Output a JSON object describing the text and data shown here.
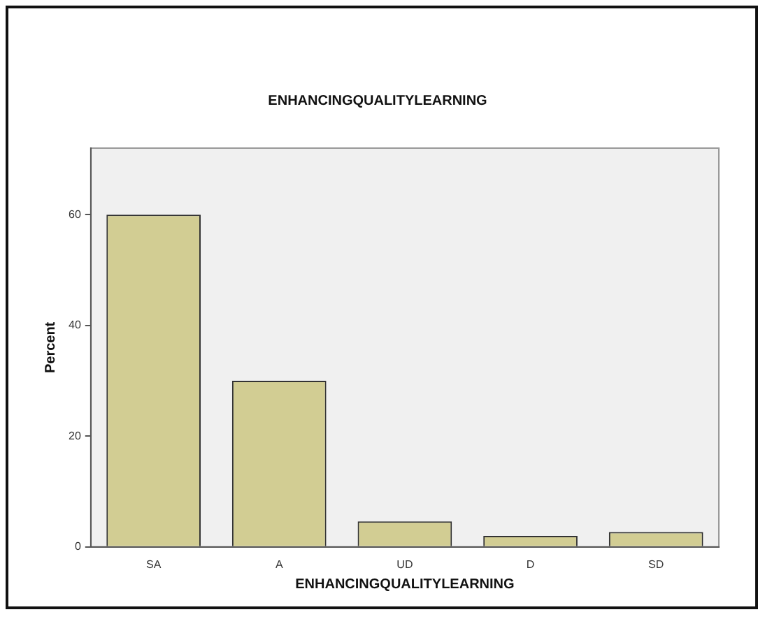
{
  "chart_data": {
    "type": "bar",
    "title": "ENHANCINGQUALITYLEARNING",
    "xlabel": "ENHANCINGQUALITYLEARNING",
    "ylabel": "Percent",
    "categories": [
      "SA",
      "A",
      "UD",
      "D",
      "SD"
    ],
    "values": [
      60,
      30,
      4.6,
      2,
      2.7
    ],
    "color": "#d2cd93",
    "ylim": [
      0,
      72
    ],
    "yticks": [
      0,
      20,
      40,
      60
    ],
    "grid": false,
    "legend": false
  }
}
